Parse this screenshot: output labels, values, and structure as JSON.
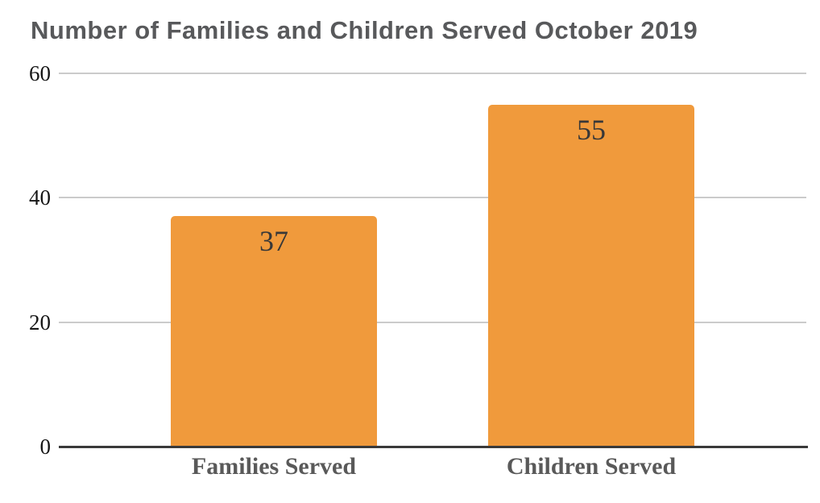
{
  "chart_data": {
    "type": "bar",
    "title": "Number of Families and Children Served October 2019",
    "categories": [
      "Families Served",
      "Children Served"
    ],
    "values": [
      37,
      55
    ],
    "data_labels": [
      "37",
      "55"
    ],
    "yticks": [
      0,
      20,
      40,
      60
    ],
    "ylim": [
      0,
      60
    ],
    "xlabel": "",
    "ylabel": "",
    "grid": true,
    "legend_position": "none",
    "bar_color": "#F09A3C",
    "colors": {
      "title_text": "#58595B",
      "category_label_text": "#595959",
      "data_label_text": "#383838",
      "tick_label_text": "#161616",
      "gridline": "#CBCBCB",
      "axis_line": "#3A3A3A",
      "background": "#FFFFFF"
    }
  }
}
